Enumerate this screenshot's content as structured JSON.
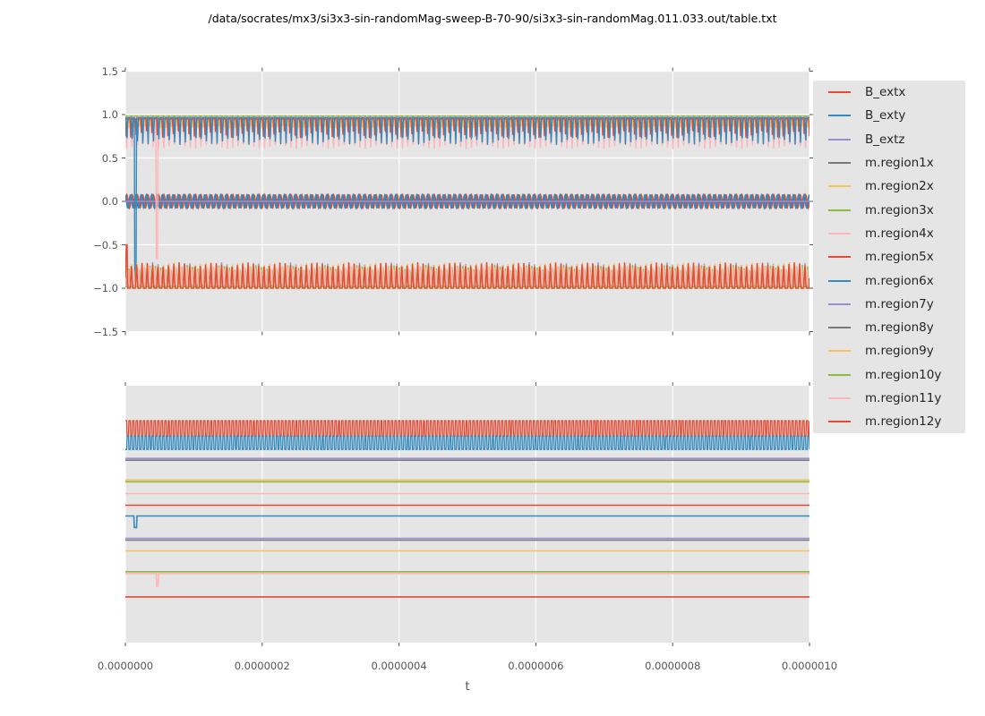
{
  "figure": {
    "title": "/data/socrates/mx3/si3x3-sin-randomMag-sweep-B-70-90/si3x3-sin-randomMag.011.033.out/table.txt",
    "xlabel": "t"
  },
  "colors": {
    "figure_bg": "#ffffff",
    "axes_bg": "#e5e5e5",
    "grid": "#ffffff",
    "tick_color": "#555555",
    "tick_label_color": "#555555",
    "title_color": "#000000",
    "legend_bg": "#e5e5e5",
    "legend_text": "#262626",
    "palette": {
      "red": "#e24a33",
      "blue": "#348abd",
      "purple": "#988ed5",
      "gray": "#777777",
      "orange": "#fbc15e",
      "green": "#8eba42",
      "pink": "#ffb5b8"
    }
  },
  "legend": {
    "position": "outside-right",
    "entries": [
      "B_extx",
      "B_exty",
      "B_extz",
      "m.region1x",
      "m.region2x",
      "m.region3x",
      "m.region4x",
      "m.region5x",
      "m.region6x",
      "m.region7y",
      "m.region8y",
      "m.region9y",
      "m.region10y",
      "m.region11y",
      "m.region12y"
    ]
  },
  "chart_data": [
    {
      "type": "line",
      "subplot": "top",
      "xlim": [
        0,
        1e-06
      ],
      "ylim": [
        -1.5,
        1.5
      ],
      "grid": "both",
      "xticks": {
        "values": [
          0,
          2e-07,
          4e-07,
          6e-07,
          8e-07,
          1e-06
        ],
        "labels": [
          "0.0000000",
          "0.0000002",
          "0.0000004",
          "0.0000006",
          "0.0000008",
          "0.0000010"
        ],
        "show_labels": false
      },
      "yticks": {
        "values": [
          1.5,
          1.0,
          0.5,
          0.0,
          -0.5,
          -1.0,
          -1.5
        ],
        "labels": [
          "1.5",
          "1.0",
          "0.5",
          "0.0",
          "−0.5",
          "−1.0",
          "−1.5"
        ],
        "show_labels": true
      },
      "series": [
        {
          "name": "B_extx",
          "color": "#e24a33",
          "wave": {
            "kind": "sine",
            "mean": 0,
            "amp": 0.075,
            "cycles": 129,
            "phase": 0
          }
        },
        {
          "name": "B_exty",
          "color": "#348abd",
          "wave": {
            "kind": "sine",
            "mean": 0,
            "amp": 0.075,
            "cycles": 129,
            "phase": 0.27
          }
        },
        {
          "name": "B_extz",
          "color": "#988ed5",
          "wave": {
            "kind": "flat",
            "value": 0
          }
        },
        {
          "name": "m.region1x",
          "color": "#777777",
          "wave": {
            "kind": "spikes",
            "base": 0.97,
            "peak": 0.88,
            "cycles": 129,
            "phase": 0.55,
            "duty": 0.3
          }
        },
        {
          "name": "m.region2x",
          "color": "#fbc15e",
          "wave": {
            "kind": "spikes",
            "base": 0.98,
            "peak": 0.84,
            "cycles": 129,
            "phase": 0.5,
            "duty": 0.35
          }
        },
        {
          "name": "m.region3x",
          "color": "#8eba42",
          "wave": {
            "kind": "spikes",
            "base": 0.985,
            "peak": 0.9,
            "cycles": 129,
            "phase": 0.62,
            "duty": 0.25
          }
        },
        {
          "name": "m.region4x",
          "color": "#ffb5b8",
          "wave": {
            "kind": "spikes",
            "base": 0.975,
            "peak": 0.6,
            "cycles": 129,
            "phase": 0,
            "duty": 0.5
          },
          "events": [
            {
              "t": 4.6e-08,
              "value": -0.66,
              "width": 2.5e-09
            }
          ]
        },
        {
          "name": "m.region5x",
          "color": "#e24a33",
          "wave": {
            "kind": "spikes",
            "base": 0.95,
            "peak": 0.73,
            "cycles": 129,
            "phase": 0.1,
            "duty": 0.22
          }
        },
        {
          "name": "m.region6x",
          "color": "#348abd",
          "wave": {
            "kind": "spikes",
            "base": 0.965,
            "peak": 0.65,
            "cycles": 129,
            "phase": 0.85,
            "duty": 0.3
          },
          "events": [
            {
              "t": 1.45e-08,
              "value": -0.88,
              "width": 2.8e-09
            }
          ]
        },
        {
          "name": "m.region7y",
          "color": "#988ed5",
          "wave": {
            "kind": "spikes",
            "base": -0.97,
            "peak": -0.7,
            "cycles": 129,
            "phase": 0,
            "duty": 0.3
          }
        },
        {
          "name": "m.region8y",
          "color": "#777777",
          "wave": {
            "kind": "spikes",
            "base": -0.98,
            "peak": -0.86,
            "cycles": 129,
            "phase": 0.4,
            "duty": 0.3
          }
        },
        {
          "name": "m.region9y",
          "color": "#fbc15e",
          "wave": {
            "kind": "spikes",
            "base": -1.0,
            "peak": -0.7,
            "cycles": 129,
            "phase": 0.05,
            "duty": 0.5
          }
        },
        {
          "name": "m.region10y",
          "color": "#8eba42",
          "wave": {
            "kind": "spikes",
            "base": -0.985,
            "peak": -0.73,
            "cycles": 129,
            "phase": 0.5,
            "duty": 0.3
          }
        },
        {
          "name": "m.region11y",
          "color": "#ffb5b8",
          "wave": {
            "kind": "spikes",
            "base": -0.97,
            "peak": -0.74,
            "cycles": 129,
            "phase": 0.6,
            "duty": 0.3
          }
        },
        {
          "name": "m.region12y",
          "color": "#e24a33",
          "wave": {
            "kind": "spikes",
            "base": -1.0,
            "peak": -0.7,
            "cycles": 129,
            "phase": 0.08,
            "duty": 0.42
          },
          "events": [
            {
              "t": 2e-09,
              "value": -0.5,
              "width": 2e-09
            }
          ]
        }
      ]
    },
    {
      "type": "line",
      "subplot": "bottom",
      "xlabel": "t",
      "xlim": [
        0,
        1e-06
      ],
      "ylim": [
        0,
        1
      ],
      "grid": "vertical",
      "xticks": {
        "values": [
          0,
          2e-07,
          4e-07,
          6e-07,
          8e-07,
          1e-06
        ],
        "labels": [
          "0.0000000",
          "0.0000002",
          "0.0000004",
          "0.0000006",
          "0.0000008",
          "0.0000010"
        ],
        "show_labels": true
      },
      "yticks": null,
      "series": [
        {
          "name": "B_extx",
          "color": "#e24a33",
          "wave": {
            "kind": "square",
            "high": 0.864,
            "low": 0.804,
            "cycles": 193,
            "phase": 0,
            "duty": 0.5
          }
        },
        {
          "name": "B_exty",
          "color": "#348abd",
          "wave": {
            "kind": "square",
            "high": 0.804,
            "low": 0.752,
            "cycles": 193,
            "phase": 0.55,
            "duty": 0.5
          }
        },
        {
          "name": "B_extz",
          "color": "#988ed5",
          "wave": {
            "kind": "flat",
            "value": 0.717
          }
        },
        {
          "name": "m.region1x",
          "color": "#777777",
          "wave": {
            "kind": "flat",
            "value": 0.71
          }
        },
        {
          "name": "m.region2x",
          "color": "#fbc15e",
          "wave": {
            "kind": "flat",
            "value": 0.633
          }
        },
        {
          "name": "m.region3x",
          "color": "#8eba42",
          "wave": {
            "kind": "flat",
            "value": 0.626
          }
        },
        {
          "name": "m.region4x",
          "color": "#ffb5b8",
          "wave": {
            "kind": "flat",
            "value": 0.58
          }
        },
        {
          "name": "m.region5x",
          "color": "#e24a33",
          "wave": {
            "kind": "flat",
            "value": 0.535
          }
        },
        {
          "name": "m.region6x",
          "color": "#348abd",
          "wave": {
            "kind": "flat",
            "value": 0.493
          },
          "events": [
            {
              "t": 1.45e-08,
              "value": 0.448,
              "width": 4e-09
            }
          ]
        },
        {
          "name": "m.region7y",
          "color": "#988ed5",
          "wave": {
            "kind": "flat",
            "value": 0.406
          }
        },
        {
          "name": "m.region8y",
          "color": "#777777",
          "wave": {
            "kind": "flat",
            "value": 0.399
          }
        },
        {
          "name": "m.region9y",
          "color": "#fbc15e",
          "wave": {
            "kind": "flat",
            "value": 0.357
          }
        },
        {
          "name": "m.region10y",
          "color": "#8eba42",
          "wave": {
            "kind": "flat",
            "value": 0.276
          }
        },
        {
          "name": "m.region11y",
          "color": "#ffb5b8",
          "wave": {
            "kind": "flat",
            "value": 0.269
          },
          "events": [
            {
              "t": 4.7e-08,
              "value": 0.22,
              "width": 2.5e-09
            }
          ]
        },
        {
          "name": "m.region12y",
          "color": "#e24a33",
          "wave": {
            "kind": "flat",
            "value": 0.178
          }
        }
      ]
    }
  ]
}
